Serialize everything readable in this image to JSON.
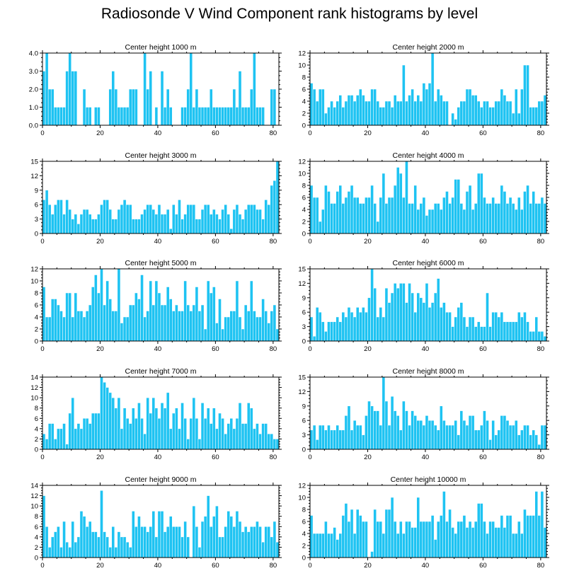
{
  "figure": {
    "title": "Radiosonde V Wind Component rank histograms by level",
    "bar_color": "#1ec3f2"
  },
  "chart_data": [
    {
      "type": "bar",
      "title": "Center height 1000 m",
      "x": "rank 0..81",
      "xticks": [
        0,
        20,
        40,
        60,
        80
      ],
      "xlim": [
        0,
        82
      ],
      "ylim": [
        0,
        4
      ],
      "yticks": [
        "0.0",
        "1.0",
        "2.0",
        "3.0",
        "4.0"
      ],
      "values": [
        3,
        4,
        2,
        2,
        1,
        1,
        1,
        1,
        3,
        4,
        3,
        3,
        0,
        0,
        2,
        1,
        1,
        0,
        1,
        1,
        0,
        0,
        0,
        2,
        3,
        2,
        1,
        1,
        1,
        1,
        2,
        2,
        2,
        0,
        0,
        4,
        2,
        3,
        0,
        1,
        0,
        3,
        1,
        2,
        1,
        0,
        0,
        0,
        1,
        1,
        2,
        4,
        1,
        2,
        1,
        1,
        1,
        1,
        2,
        1,
        1,
        1,
        1,
        1,
        1,
        1,
        2,
        1,
        3,
        1,
        1,
        1,
        2,
        4,
        1,
        1,
        1,
        0,
        0,
        2,
        2,
        0
      ]
    },
    {
      "type": "bar",
      "title": "Center height 2000 m",
      "x": "rank 0..81",
      "xticks": [
        0,
        20,
        40,
        60,
        80
      ],
      "xlim": [
        0,
        82
      ],
      "ylim": [
        0,
        12
      ],
      "yticks": [
        "0",
        "2",
        "4",
        "6",
        "8",
        "10",
        "12"
      ],
      "values": [
        7,
        6,
        4,
        6,
        6,
        2,
        3,
        4,
        3,
        4,
        5,
        3,
        4,
        5,
        5,
        4,
        5,
        6,
        5,
        4,
        4,
        6,
        6,
        4,
        3,
        3,
        4,
        4,
        3,
        5,
        4,
        4,
        10,
        4,
        5,
        6,
        4,
        5,
        4,
        7,
        6,
        7,
        12,
        4,
        6,
        5,
        4,
        4,
        0,
        2,
        1,
        3,
        4,
        4,
        6,
        6,
        5,
        5,
        4,
        3,
        4,
        4,
        3,
        3,
        4,
        4,
        6,
        5,
        4,
        4,
        2,
        6,
        2,
        6,
        10,
        10,
        3,
        3,
        3,
        4,
        4,
        5
      ]
    },
    {
      "type": "bar",
      "title": "Center height 3000 m",
      "x": "rank 0..81",
      "xticks": [
        0,
        20,
        40,
        60,
        80
      ],
      "xlim": [
        0,
        82
      ],
      "ylim": [
        0,
        15
      ],
      "yticks": [
        "0",
        "3",
        "6",
        "9",
        "12",
        "15"
      ],
      "values": [
        7,
        9,
        6,
        4,
        6,
        7,
        7,
        4,
        7,
        5,
        3,
        4,
        2,
        4,
        5,
        5,
        4,
        3,
        3,
        4,
        6,
        7,
        7,
        5,
        3,
        3,
        5,
        6,
        7,
        6,
        6,
        3,
        3,
        3,
        4,
        5,
        6,
        6,
        5,
        4,
        6,
        4,
        4,
        5,
        1,
        6,
        4,
        7,
        3,
        4,
        6,
        6,
        6,
        3,
        3,
        5,
        6,
        6,
        4,
        5,
        4,
        3,
        5,
        6,
        4,
        1,
        5,
        6,
        4,
        3,
        5,
        6,
        6,
        6,
        5,
        5,
        3,
        7,
        6,
        10,
        11,
        15
      ]
    },
    {
      "type": "bar",
      "title": "Center height 4000 m",
      "x": "rank 0..81",
      "xticks": [
        0,
        20,
        40,
        60,
        80
      ],
      "xlim": [
        0,
        82
      ],
      "ylim": [
        0,
        12
      ],
      "yticks": [
        "0",
        "2",
        "4",
        "6",
        "8",
        "10",
        "12"
      ],
      "values": [
        8,
        6,
        6,
        2,
        4,
        8,
        7,
        5,
        5,
        7,
        8,
        5,
        6,
        7,
        8,
        6,
        6,
        5,
        5,
        6,
        6,
        8,
        5,
        2,
        6,
        10,
        5,
        6,
        6,
        8,
        11,
        10,
        6,
        12,
        5,
        5,
        8,
        4,
        5,
        6,
        3,
        4,
        4,
        5,
        5,
        4,
        6,
        7,
        5,
        6,
        9,
        9,
        5,
        4,
        7,
        8,
        4,
        5,
        10,
        10,
        6,
        5,
        5,
        6,
        5,
        5,
        8,
        7,
        5,
        6,
        5,
        4,
        6,
        4,
        7,
        8,
        5,
        7,
        5,
        5,
        6,
        5
      ]
    },
    {
      "type": "bar",
      "title": "Center height 5000 m",
      "x": "rank 0..81",
      "xticks": [
        0,
        20,
        40,
        60,
        80
      ],
      "xlim": [
        0,
        82
      ],
      "ylim": [
        0,
        12
      ],
      "yticks": [
        "0",
        "2",
        "4",
        "6",
        "8",
        "10",
        "12"
      ],
      "values": [
        9,
        4,
        4,
        7,
        7,
        6,
        5,
        4,
        8,
        8,
        4,
        8,
        5,
        5,
        4,
        5,
        6,
        9,
        11,
        8,
        12,
        6,
        10,
        7,
        5,
        5,
        12,
        3,
        4,
        4,
        6,
        6,
        8,
        7,
        11,
        4,
        5,
        10,
        6,
        10,
        8,
        6,
        6,
        9,
        7,
        5,
        6,
        5,
        5,
        10,
        6,
        5,
        6,
        9,
        5,
        6,
        2,
        10,
        8,
        9,
        3,
        7,
        2,
        4,
        4,
        5,
        5,
        10,
        4,
        2,
        6,
        5,
        10,
        5,
        4,
        4,
        7,
        5,
        3,
        5,
        6,
        2
      ]
    },
    {
      "type": "bar",
      "title": "Center height 6000 m",
      "x": "rank 0..81",
      "xticks": [
        0,
        20,
        40,
        60,
        80
      ],
      "xlim": [
        0,
        82
      ],
      "ylim": [
        0,
        15
      ],
      "yticks": [
        "0",
        "3",
        "6",
        "9",
        "12",
        "15"
      ],
      "values": [
        5,
        1,
        7,
        6,
        4,
        2,
        4,
        4,
        4,
        5,
        4,
        6,
        5,
        7,
        6,
        5,
        7,
        6,
        7,
        6,
        9,
        15,
        11,
        5,
        7,
        5,
        11,
        8,
        10,
        12,
        11,
        12,
        12,
        8,
        12,
        10,
        6,
        10,
        9,
        8,
        12,
        7,
        8,
        10,
        13,
        7,
        8,
        6,
        6,
        3,
        5,
        7,
        8,
        5,
        3,
        5,
        5,
        3,
        4,
        3,
        3,
        10,
        3,
        6,
        6,
        5,
        6,
        4,
        4,
        4,
        4,
        4,
        6,
        5,
        6,
        4,
        2,
        2,
        5,
        2,
        2,
        1
      ]
    },
    {
      "type": "bar",
      "title": "Center height 7000 m",
      "x": "rank 0..81",
      "xticks": [
        0,
        20,
        40,
        60,
        80
      ],
      "xlim": [
        0,
        82
      ],
      "ylim": [
        0,
        14
      ],
      "yticks": [
        "0",
        "2",
        "4",
        "6",
        "8",
        "10",
        "12",
        "14"
      ],
      "values": [
        3,
        2,
        5,
        5,
        2,
        4,
        4,
        5,
        1,
        7,
        10,
        4,
        5,
        4,
        6,
        6,
        5,
        7,
        7,
        7,
        14,
        13,
        12,
        11,
        10,
        8,
        10,
        4,
        8,
        6,
        5,
        8,
        6,
        9,
        6,
        3,
        10,
        7,
        10,
        8,
        6,
        9,
        8,
        11,
        4,
        7,
        8,
        4,
        9,
        6,
        2,
        6,
        10,
        6,
        2,
        9,
        6,
        8,
        5,
        8,
        4,
        7,
        6,
        3,
        5,
        6,
        4,
        6,
        9,
        5,
        5,
        9,
        8,
        4,
        5,
        3,
        5,
        5,
        3,
        3,
        2,
        2
      ]
    },
    {
      "type": "bar",
      "title": "Center height 8000 m",
      "x": "rank 0..81",
      "xticks": [
        0,
        20,
        40,
        60,
        80
      ],
      "xlim": [
        0,
        82
      ],
      "ylim": [
        0,
        15
      ],
      "yticks": [
        "0",
        "3",
        "6",
        "9",
        "12",
        "15"
      ],
      "values": [
        4,
        5,
        2,
        5,
        5,
        4,
        5,
        4,
        4,
        5,
        4,
        4,
        7,
        9,
        4,
        6,
        5,
        5,
        3,
        7,
        10,
        9,
        8,
        8,
        5,
        15,
        10,
        5,
        11,
        8,
        7,
        4,
        10,
        8,
        5,
        8,
        7,
        6,
        6,
        5,
        7,
        6,
        6,
        5,
        4,
        9,
        6,
        5,
        5,
        5,
        6,
        3,
        8,
        6,
        5,
        7,
        7,
        4,
        4,
        5,
        8,
        6,
        2,
        6,
        3,
        4,
        7,
        7,
        6,
        5,
        5,
        6,
        3,
        4,
        5,
        5,
        3,
        4,
        3,
        1,
        5,
        5
      ]
    },
    {
      "type": "bar",
      "title": "Center height 9000 m",
      "x": "rank 0..81",
      "xticks": [
        0,
        20,
        40,
        60,
        80
      ],
      "xlim": [
        0,
        82
      ],
      "ylim": [
        0,
        14
      ],
      "yticks": [
        "0",
        "2",
        "4",
        "6",
        "8",
        "10",
        "12",
        "14"
      ],
      "values": [
        12,
        6,
        2,
        4,
        5,
        6,
        2,
        7,
        3,
        2,
        7,
        3,
        4,
        9,
        8,
        6,
        7,
        5,
        5,
        4,
        13,
        5,
        4,
        2,
        6,
        2,
        5,
        4,
        4,
        3,
        2,
        9,
        6,
        8,
        6,
        6,
        5,
        6,
        9,
        4,
        9,
        9,
        5,
        6,
        8,
        6,
        6,
        6,
        4,
        7,
        4,
        0,
        10,
        6,
        2,
        7,
        8,
        12,
        6,
        8,
        10,
        4,
        4,
        6,
        9,
        8,
        6,
        9,
        7,
        5,
        6,
        5,
        6,
        6,
        7,
        6,
        3,
        6,
        6,
        4,
        7,
        3
      ]
    },
    {
      "type": "bar",
      "title": "Center height 10000 m",
      "x": "rank 0..81",
      "xticks": [
        0,
        20,
        40,
        60,
        80
      ],
      "xlim": [
        0,
        82
      ],
      "ylim": [
        0,
        12
      ],
      "yticks": [
        "0",
        "2",
        "4",
        "6",
        "8",
        "10",
        "12"
      ],
      "values": [
        7,
        4,
        4,
        4,
        4,
        6,
        4,
        4,
        5,
        3,
        4,
        7,
        9,
        6,
        8,
        4,
        8,
        7,
        6,
        6,
        0,
        1,
        8,
        6,
        6,
        4,
        8,
        8,
        10,
        6,
        4,
        6,
        4,
        6,
        6,
        5,
        5,
        10,
        6,
        6,
        6,
        6,
        7,
        3,
        6,
        7,
        11,
        6,
        8,
        5,
        4,
        6,
        6,
        7,
        5,
        6,
        5,
        6,
        9,
        9,
        6,
        4,
        6,
        6,
        5,
        5,
        7,
        5,
        7,
        7,
        4,
        4,
        6,
        4,
        8,
        7,
        7,
        7,
        11,
        7,
        11,
        5
      ]
    }
  ]
}
